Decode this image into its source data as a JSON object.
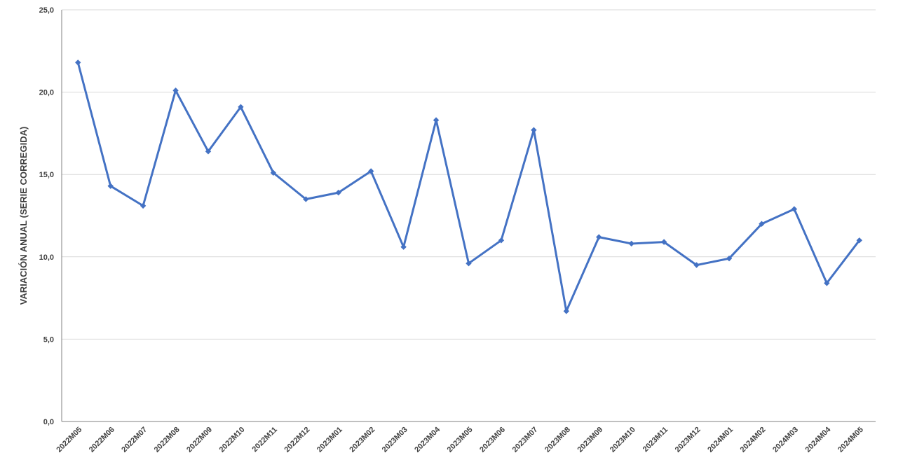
{
  "chart_data": {
    "type": "line",
    "title": "",
    "xlabel": "",
    "ylabel": "VARIACIÓN ANUAL (SERIE CORREGIDA)",
    "categories": [
      "2022M05",
      "2022M06",
      "2022M07",
      "2022M08",
      "2022M09",
      "2022M10",
      "2022M11",
      "2022M12",
      "2023M01",
      "2023M02",
      "2023M03",
      "2023M04",
      "2023M05",
      "2023M06",
      "2023M07",
      "2023M08",
      "2023M09",
      "2023M10",
      "2023M11",
      "2023M12",
      "2024M01",
      "2024M02",
      "2024M03",
      "2024M04",
      "2024M05"
    ],
    "series": [
      {
        "values": [
          21.8,
          14.3,
          13.1,
          20.1,
          16.4,
          19.1,
          15.1,
          13.5,
          13.9,
          15.2,
          10.6,
          18.3,
          9.6,
          11.0,
          17.7,
          6.7,
          11.2,
          10.8,
          10.9,
          9.5,
          9.9,
          12.0,
          12.9,
          8.4,
          11.0
        ],
        "color": "#4472C4",
        "marker": "diamond"
      }
    ],
    "ylim": [
      0,
      25
    ],
    "yticks": [
      "0,0",
      "5,0",
      "10,0",
      "15,0",
      "20,0",
      "25,0"
    ],
    "ytick_values": [
      0,
      5,
      10,
      15,
      20,
      25
    ],
    "grid": true,
    "gridline_color": "#d9d9d9",
    "axis_color": "#808080",
    "legend": "none"
  }
}
